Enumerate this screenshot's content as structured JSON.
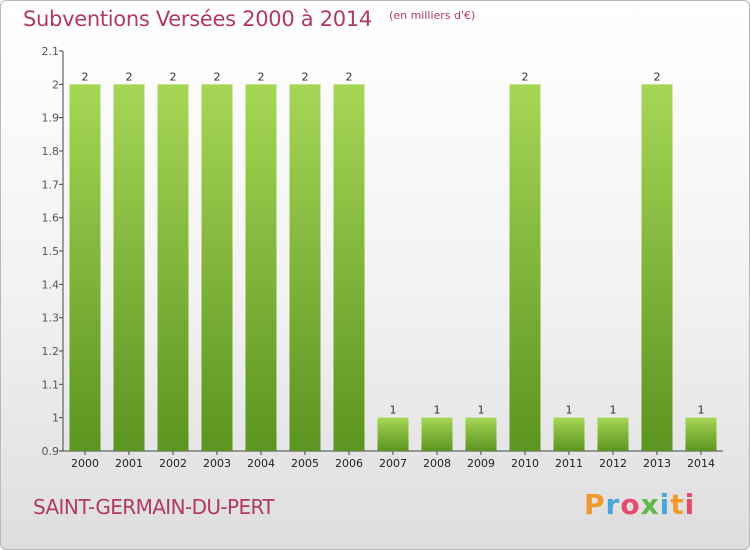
{
  "title": "Subventions Versées 2000 à 2014",
  "unit": "(en milliers d'€)",
  "commune": "SAINT-GERMAIN-DU-PERT",
  "logo": {
    "text": "Proxiti",
    "colors": [
      "#f09a2c",
      "#4ea5d9",
      "#e34c6c",
      "#5db94a",
      "#4ea5d9",
      "#f09a2c",
      "#e34c6c"
    ]
  },
  "colors": {
    "title": "#b23a61",
    "bar": "#7cbc35",
    "bar_highlight": "#a6d655",
    "bar_shadow": "#5b9420"
  },
  "chart_data": {
    "type": "bar",
    "categories": [
      "2000",
      "2001",
      "2002",
      "2003",
      "2004",
      "2005",
      "2006",
      "2007",
      "2008",
      "2009",
      "2010",
      "2011",
      "2012",
      "2013",
      "2014"
    ],
    "values": [
      2,
      2,
      2,
      2,
      2,
      2,
      2,
      1,
      1,
      1,
      2,
      1,
      1,
      2,
      1
    ],
    "data_labels": [
      "2",
      "2",
      "2",
      "2",
      "2",
      "2",
      "2",
      "1",
      "1",
      "1",
      "2",
      "1",
      "1",
      "2",
      "1"
    ],
    "ylim": [
      0.9,
      2.1
    ],
    "yticks": [
      0.9,
      1,
      1.1,
      1.2,
      1.3,
      1.4,
      1.5,
      1.6,
      1.7,
      1.8,
      1.9,
      2,
      2.1
    ],
    "ytick_labels": [
      "0.9",
      "1",
      "1.1",
      "1.2",
      "1.3",
      "1.4",
      "1.5",
      "1.6",
      "1.7",
      "1.8",
      "1.9",
      "2",
      "2.1"
    ],
    "grid": false,
    "legend": false
  }
}
